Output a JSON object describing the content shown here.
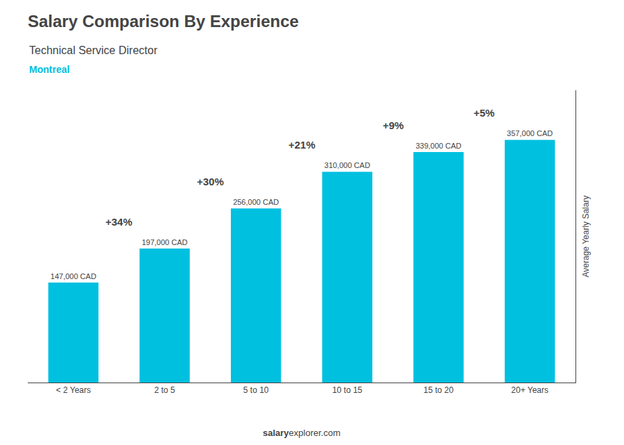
{
  "chart_data": {
    "type": "bar",
    "title": "Salary Comparison By Experience",
    "subtitle": "Technical Service Director",
    "annotations": [
      "Montreal"
    ],
    "footer": [
      "salary",
      "explorer.com"
    ],
    "ylabel": "Average Yearly Salary",
    "categories": [
      "< 2 Years",
      "2 to 5",
      "5 to 10",
      "10 to 15",
      "15 to 20",
      "20+ Years"
    ],
    "values": [
      147000,
      197000,
      256000,
      310000,
      339000,
      357000
    ],
    "value_labels": [
      "147,000 CAD",
      "197,000 CAD",
      "256,000 CAD",
      "310,000 CAD",
      "339,000 CAD",
      "357,000 CAD"
    ],
    "data_labels": true,
    "change_labels": [
      "+34%",
      "+30%",
      "+21%",
      "+9%",
      "+5%"
    ],
    "color": "#00C0E0",
    "ylim": [
      0,
      430000
    ],
    "grid": false,
    "tick_labels": "x"
  }
}
